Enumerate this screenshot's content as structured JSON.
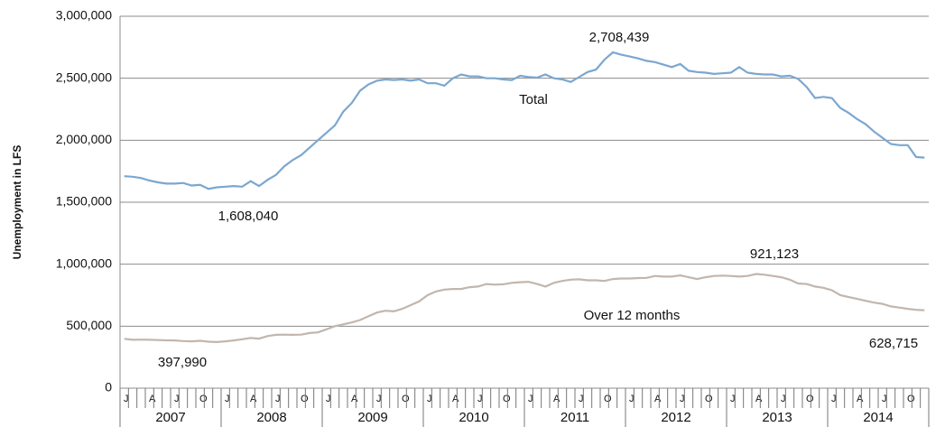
{
  "chart_data": {
    "type": "line",
    "y_label": "Unemployment in LFS",
    "categories": [
      "J",
      null,
      null,
      "A",
      null,
      null,
      "J",
      null,
      null,
      "O",
      null,
      null,
      "J",
      null,
      null,
      "A",
      null,
      null,
      "J",
      null,
      null,
      "O",
      null,
      null,
      "J",
      null,
      null,
      "A",
      null,
      null,
      "J",
      null,
      null,
      "O",
      null,
      null,
      "J",
      null,
      null,
      "A",
      null,
      null,
      "J",
      null,
      null,
      "O",
      null,
      null,
      "J",
      null,
      null,
      "A",
      null,
      null,
      "J",
      null,
      null,
      "O",
      null,
      null,
      "J",
      null,
      null,
      "A",
      null,
      null,
      "J",
      null,
      null,
      "O",
      null,
      null,
      "J",
      null,
      null,
      "A",
      null,
      null,
      "J",
      null,
      null,
      "O",
      null,
      null,
      "J",
      null,
      null,
      "A",
      null,
      null,
      "J",
      null,
      null,
      "O",
      null,
      null
    ],
    "year_groups": [
      "2007",
      "2008",
      "2009",
      "2010",
      "2011",
      "2012",
      "2013",
      "2014"
    ],
    "series": [
      {
        "name": "Total",
        "color": "#7ba7d0",
        "values": [
          1710000,
          1705000,
          1695000,
          1675000,
          1660000,
          1650000,
          1650000,
          1655000,
          1635000,
          1640000,
          1608040,
          1620000,
          1625000,
          1630000,
          1625000,
          1670000,
          1630000,
          1680000,
          1720000,
          1790000,
          1840000,
          1880000,
          1940000,
          2000000,
          2060000,
          2120000,
          2230000,
          2300000,
          2400000,
          2450000,
          2480000,
          2490000,
          2485000,
          2490000,
          2480000,
          2490000,
          2460000,
          2460000,
          2440000,
          2500000,
          2530000,
          2515000,
          2515000,
          2500000,
          2500000,
          2490000,
          2485000,
          2520000,
          2510000,
          2505000,
          2530000,
          2500000,
          2490000,
          2470000,
          2510000,
          2550000,
          2570000,
          2650000,
          2708439,
          2690000,
          2675000,
          2660000,
          2640000,
          2630000,
          2610000,
          2590000,
          2615000,
          2560000,
          2550000,
          2545000,
          2535000,
          2540000,
          2545000,
          2590000,
          2545000,
          2535000,
          2530000,
          2530000,
          2515000,
          2520000,
          2495000,
          2430000,
          2340000,
          2350000,
          2340000,
          2260000,
          2220000,
          2170000,
          2130000,
          2070000,
          2020000,
          1970000,
          1960000,
          1960000,
          1865000,
          1860000
        ]
      },
      {
        "name": "Over 12 months",
        "color": "#c2b6ad",
        "values": [
          397990,
          390000,
          392000,
          390000,
          388000,
          386000,
          385000,
          380000,
          378000,
          382000,
          375000,
          372000,
          378000,
          385000,
          395000,
          405000,
          400000,
          420000,
          430000,
          432000,
          430000,
          432000,
          445000,
          450000,
          475000,
          500000,
          515000,
          530000,
          550000,
          580000,
          610000,
          625000,
          620000,
          640000,
          670000,
          700000,
          750000,
          780000,
          795000,
          800000,
          800000,
          815000,
          820000,
          840000,
          835000,
          838000,
          850000,
          855000,
          858000,
          840000,
          820000,
          850000,
          865000,
          875000,
          878000,
          870000,
          870000,
          865000,
          880000,
          885000,
          885000,
          888000,
          890000,
          905000,
          900000,
          900000,
          910000,
          895000,
          880000,
          895000,
          905000,
          908000,
          905000,
          900000,
          905000,
          921123,
          915000,
          905000,
          895000,
          875000,
          845000,
          840000,
          820000,
          810000,
          790000,
          750000,
          735000,
          720000,
          705000,
          690000,
          680000,
          660000,
          650000,
          640000,
          632000,
          628715
        ]
      }
    ],
    "annotations": [
      "2,708,439",
      "Total",
      "1,608,040",
      "Over 12 months",
      "921,123",
      "397,990",
      "628,715"
    ],
    "ylim": [
      0,
      3000000
    ],
    "yticks": [
      0,
      {
        "value": 500000,
        "label": "500,000"
      },
      {
        "value": 1000000,
        "label": "1,000,000"
      },
      {
        "value": 1500000,
        "label": "1,500,000"
      },
      {
        "value": 2000000,
        "label": "2,000,000"
      },
      {
        "value": 2500000,
        "label": "2,500,000"
      },
      {
        "value": 3000000,
        "label": "3,000,000"
      }
    ],
    "grid": true
  }
}
